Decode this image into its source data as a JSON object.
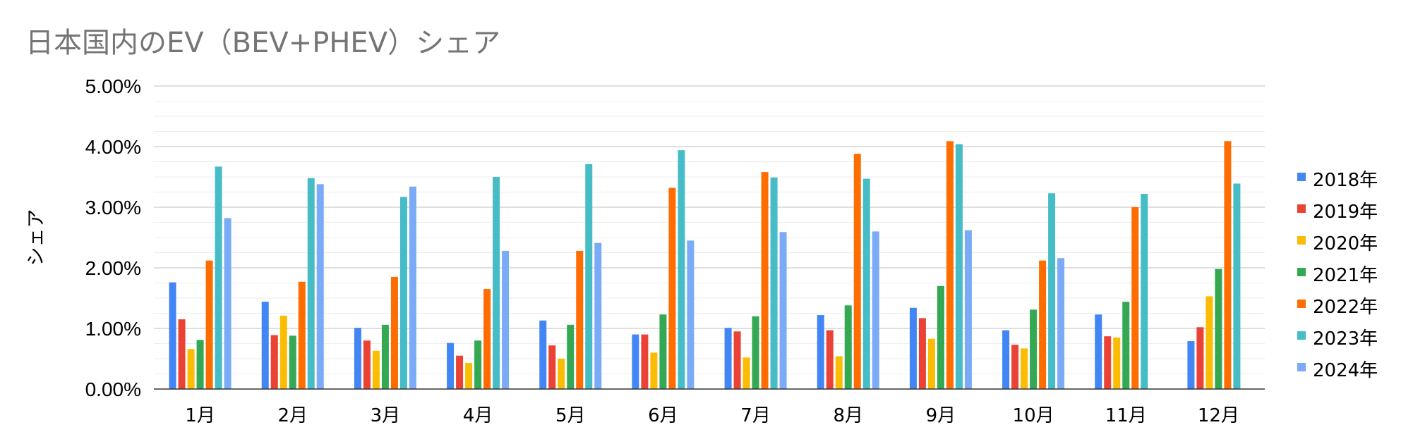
{
  "chart_data": {
    "type": "bar",
    "title": "日本国内のEV（BEV+PHEV）シェア",
    "ylabel": "シェア",
    "xlabel": "",
    "ylim": [
      0,
      0.05
    ],
    "y_ticks": [
      "0.00%",
      "1.00%",
      "2.00%",
      "3.00%",
      "4.00%",
      "5.00%"
    ],
    "grid": true,
    "legend_position": "right",
    "categories": [
      "1月",
      "2月",
      "3月",
      "4月",
      "5月",
      "6月",
      "7月",
      "8月",
      "9月",
      "10月",
      "11月",
      "12月"
    ],
    "series": [
      {
        "name": "2018年",
        "color": "#4285f4",
        "values": [
          0.0176,
          0.0144,
          0.0101,
          0.0076,
          0.0113,
          0.009,
          0.0101,
          0.0122,
          0.0134,
          0.0097,
          0.0123,
          0.0079
        ]
      },
      {
        "name": "2019年",
        "color": "#ea4335",
        "values": [
          0.0115,
          0.0089,
          0.008,
          0.0055,
          0.0072,
          0.009,
          0.0095,
          0.0097,
          0.0117,
          0.0073,
          0.0087,
          0.0102
        ]
      },
      {
        "name": "2020年",
        "color": "#fbbc04",
        "values": [
          0.0066,
          0.0121,
          0.0063,
          0.0043,
          0.005,
          0.006,
          0.0052,
          0.0054,
          0.0083,
          0.0067,
          0.0085,
          0.0153
        ]
      },
      {
        "name": "2021年",
        "color": "#34a853",
        "values": [
          0.0081,
          0.0088,
          0.0106,
          0.008,
          0.0106,
          0.0123,
          0.012,
          0.0138,
          0.017,
          0.0131,
          0.0144,
          0.0198
        ]
      },
      {
        "name": "2022年",
        "color": "#ff6d01",
        "values": [
          0.0212,
          0.0177,
          0.0185,
          0.0165,
          0.0228,
          0.0332,
          0.0358,
          0.0388,
          0.0409,
          0.0212,
          0.03,
          0.0409
        ]
      },
      {
        "name": "2023年",
        "color": "#46bdc6",
        "values": [
          0.0367,
          0.0348,
          0.0317,
          0.035,
          0.0371,
          0.0394,
          0.0349,
          0.0347,
          0.0404,
          0.0323,
          0.0322,
          0.0339
        ]
      },
      {
        "name": "2024年",
        "color": "#7baaf7",
        "values": [
          0.0282,
          0.0338,
          0.0334,
          0.0228,
          0.0241,
          0.0245,
          0.0259,
          0.026,
          0.0262,
          0.0216,
          null,
          null
        ]
      }
    ]
  }
}
